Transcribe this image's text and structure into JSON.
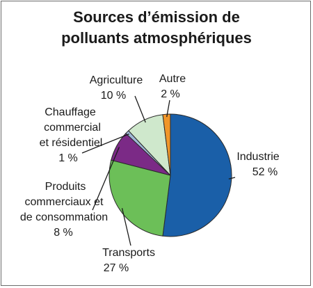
{
  "chart_data": {
    "type": "pie",
    "title_lines": [
      "Sources d’émission de",
      "polluants atmosphériques"
    ],
    "slices": [
      {
        "name": "Industrie",
        "value": 52,
        "value_label": "52 %",
        "color": "#1a5fa8"
      },
      {
        "name": "Transports",
        "value": 27,
        "value_label": "27 %",
        "color": "#6cbf58"
      },
      {
        "name_lines": [
          "Produits",
          "commerciaux et",
          "de consommation"
        ],
        "value": 8,
        "value_label": "8 %",
        "color": "#7b2a86"
      },
      {
        "name_lines": [
          "Chauffage",
          "commercial",
          "et résidentiel"
        ],
        "value": 1,
        "value_label": "1 %",
        "color": "#9fb8d6"
      },
      {
        "name": "Agriculture",
        "value": 10,
        "value_label": "10 %",
        "color": "#cfe8cc"
      },
      {
        "name": "Autre",
        "value": 2,
        "value_label": "2 %",
        "color": "#f0962a"
      }
    ]
  }
}
